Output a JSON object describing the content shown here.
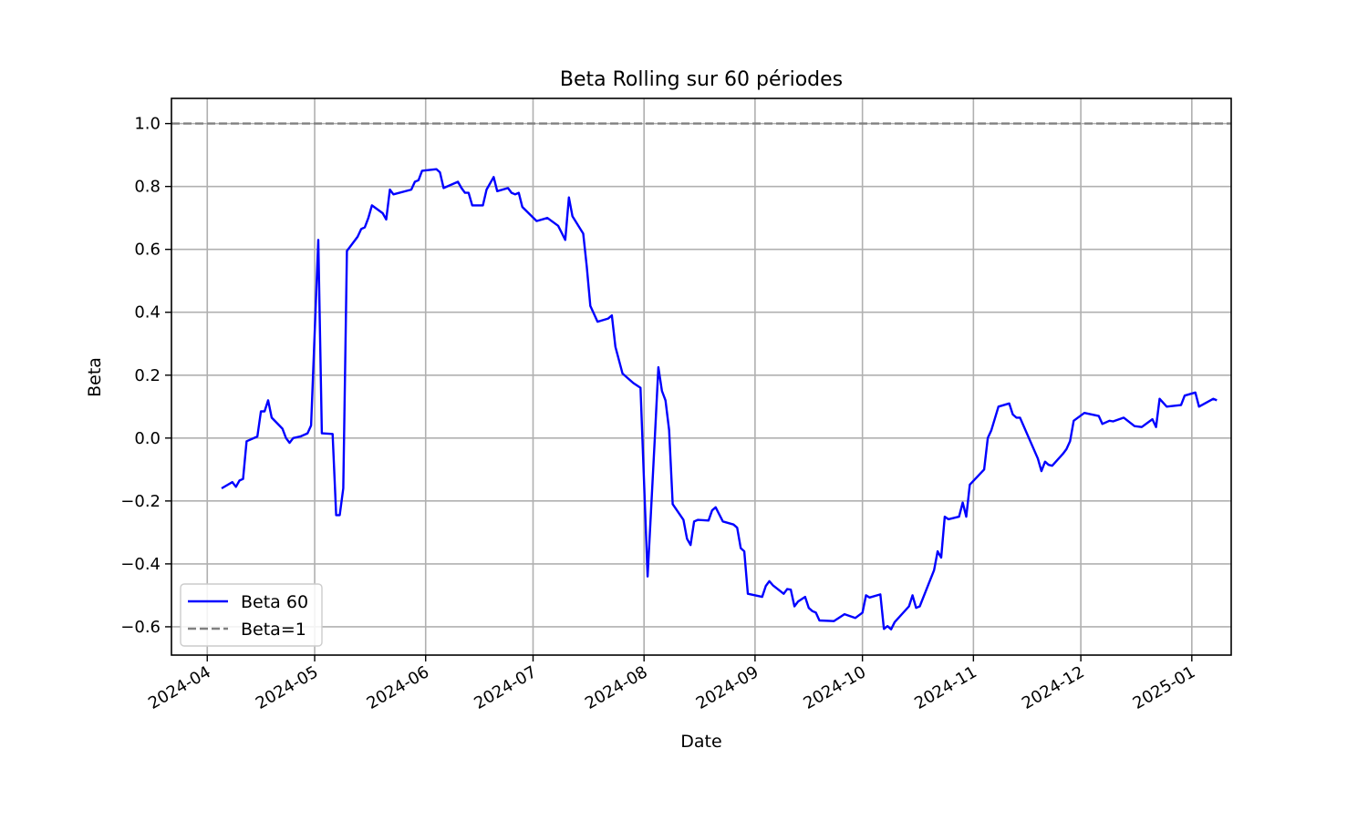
{
  "chart_data": {
    "type": "line",
    "title": "Beta Rolling sur 60 périodes",
    "xlabel": "Date",
    "ylabel": "Beta",
    "xlim": [
      "2024-03-22",
      "2025-01-12"
    ],
    "ylim": [
      -0.69,
      1.08
    ],
    "grid": true,
    "legend_position": "lower-left",
    "x_ticks": [
      "2024-04-01",
      "2024-05-01",
      "2024-06-01",
      "2024-07-01",
      "2024-08-01",
      "2024-09-01",
      "2024-10-01",
      "2024-11-01",
      "2024-12-01",
      "2025-01-01"
    ],
    "x_tick_labels": [
      "2024-04",
      "2024-05",
      "2024-06",
      "2024-07",
      "2024-08",
      "2024-09",
      "2024-10",
      "2024-11",
      "2024-12",
      "2025-01"
    ],
    "y_ticks": [
      -0.6,
      -0.4,
      -0.2,
      0.0,
      0.2,
      0.4,
      0.6,
      0.8,
      1.0
    ],
    "y_tick_labels": [
      "−0.6",
      "−0.4",
      "−0.2",
      "0.0",
      "0.2",
      "0.4",
      "0.6",
      "0.8",
      "1.0"
    ],
    "series": [
      {
        "name": "Beta 60",
        "color": "#0000ff",
        "style": "solid",
        "points": [
          [
            "2024-04-05",
            -0.16
          ],
          [
            "2024-04-08",
            -0.14
          ],
          [
            "2024-04-09",
            -0.155
          ],
          [
            "2024-04-10",
            -0.135
          ],
          [
            "2024-04-11",
            -0.13
          ],
          [
            "2024-04-12",
            -0.01
          ],
          [
            "2024-04-15",
            0.005
          ],
          [
            "2024-04-16",
            0.085
          ],
          [
            "2024-04-17",
            0.085
          ],
          [
            "2024-04-18",
            0.12
          ],
          [
            "2024-04-19",
            0.065
          ],
          [
            "2024-04-22",
            0.03
          ],
          [
            "2024-04-23",
            0.0
          ],
          [
            "2024-04-24",
            -0.015
          ],
          [
            "2024-04-25",
            0.0
          ],
          [
            "2024-04-27",
            0.005
          ],
          [
            "2024-04-29",
            0.015
          ],
          [
            "2024-04-30",
            0.04
          ],
          [
            "2024-05-02",
            0.63
          ],
          [
            "2024-05-03",
            0.015
          ],
          [
            "2024-05-06",
            0.013
          ],
          [
            "2024-05-07",
            -0.245
          ],
          [
            "2024-05-08",
            -0.245
          ],
          [
            "2024-05-09",
            -0.16
          ],
          [
            "2024-05-10",
            0.595
          ],
          [
            "2024-05-13",
            0.64
          ],
          [
            "2024-05-14",
            0.665
          ],
          [
            "2024-05-15",
            0.67
          ],
          [
            "2024-05-16",
            0.7
          ],
          [
            "2024-05-17",
            0.74
          ],
          [
            "2024-05-20",
            0.715
          ],
          [
            "2024-05-21",
            0.695
          ],
          [
            "2024-05-22",
            0.79
          ],
          [
            "2024-05-23",
            0.775
          ],
          [
            "2024-05-28",
            0.79
          ],
          [
            "2024-05-29",
            0.815
          ],
          [
            "2024-05-30",
            0.82
          ],
          [
            "2024-05-31",
            0.85
          ],
          [
            "2024-06-04",
            0.855
          ],
          [
            "2024-06-05",
            0.845
          ],
          [
            "2024-06-06",
            0.795
          ],
          [
            "2024-06-10",
            0.815
          ],
          [
            "2024-06-11",
            0.795
          ],
          [
            "2024-06-12",
            0.78
          ],
          [
            "2024-06-13",
            0.78
          ],
          [
            "2024-06-14",
            0.74
          ],
          [
            "2024-06-17",
            0.74
          ],
          [
            "2024-06-18",
            0.79
          ],
          [
            "2024-06-20",
            0.83
          ],
          [
            "2024-06-21",
            0.785
          ],
          [
            "2024-06-24",
            0.795
          ],
          [
            "2024-06-25",
            0.78
          ],
          [
            "2024-06-26",
            0.775
          ],
          [
            "2024-06-27",
            0.78
          ],
          [
            "2024-06-28",
            0.735
          ],
          [
            "2024-07-02",
            0.69
          ],
          [
            "2024-07-05",
            0.7
          ],
          [
            "2024-07-08",
            0.675
          ],
          [
            "2024-07-10",
            0.63
          ],
          [
            "2024-07-11",
            0.765
          ],
          [
            "2024-07-12",
            0.705
          ],
          [
            "2024-07-15",
            0.65
          ],
          [
            "2024-07-16",
            0.545
          ],
          [
            "2024-07-17",
            0.42
          ],
          [
            "2024-07-19",
            0.37
          ],
          [
            "2024-07-22",
            0.38
          ],
          [
            "2024-07-23",
            0.39
          ],
          [
            "2024-07-24",
            0.29
          ],
          [
            "2024-07-26",
            0.205
          ],
          [
            "2024-07-29",
            0.175
          ],
          [
            "2024-07-31",
            0.16
          ],
          [
            "2024-08-02",
            -0.44
          ],
          [
            "2024-08-04",
            0.0
          ],
          [
            "2024-08-05",
            0.225
          ],
          [
            "2024-08-06",
            0.15
          ],
          [
            "2024-08-07",
            0.12
          ],
          [
            "2024-08-08",
            0.025
          ],
          [
            "2024-08-09",
            -0.21
          ],
          [
            "2024-08-12",
            -0.26
          ],
          [
            "2024-08-13",
            -0.32
          ],
          [
            "2024-08-14",
            -0.34
          ],
          [
            "2024-08-15",
            -0.265
          ],
          [
            "2024-08-16",
            -0.26
          ],
          [
            "2024-08-19",
            -0.262
          ],
          [
            "2024-08-20",
            -0.23
          ],
          [
            "2024-08-21",
            -0.22
          ],
          [
            "2024-08-23",
            -0.265
          ],
          [
            "2024-08-26",
            -0.275
          ],
          [
            "2024-08-27",
            -0.285
          ],
          [
            "2024-08-28",
            -0.35
          ],
          [
            "2024-08-29",
            -0.36
          ],
          [
            "2024-08-30",
            -0.495
          ],
          [
            "2024-09-03",
            -0.505
          ],
          [
            "2024-09-04",
            -0.47
          ],
          [
            "2024-09-05",
            -0.455
          ],
          [
            "2024-09-06",
            -0.468
          ],
          [
            "2024-09-09",
            -0.495
          ],
          [
            "2024-09-10",
            -0.48
          ],
          [
            "2024-09-11",
            -0.482
          ],
          [
            "2024-09-12",
            -0.535
          ],
          [
            "2024-09-13",
            -0.52
          ],
          [
            "2024-09-15",
            -0.505
          ],
          [
            "2024-09-16",
            -0.54
          ],
          [
            "2024-09-17",
            -0.55
          ],
          [
            "2024-09-18",
            -0.555
          ],
          [
            "2024-09-19",
            -0.58
          ],
          [
            "2024-09-23",
            -0.582
          ],
          [
            "2024-09-26",
            -0.56
          ],
          [
            "2024-09-29",
            -0.572
          ],
          [
            "2024-10-01",
            -0.555
          ],
          [
            "2024-10-02",
            -0.5
          ],
          [
            "2024-10-03",
            -0.507
          ],
          [
            "2024-10-06",
            -0.497
          ],
          [
            "2024-10-07",
            -0.607
          ],
          [
            "2024-10-08",
            -0.598
          ],
          [
            "2024-10-09",
            -0.608
          ],
          [
            "2024-10-10",
            -0.585
          ],
          [
            "2024-10-14",
            -0.535
          ],
          [
            "2024-10-15",
            -0.5
          ],
          [
            "2024-10-16",
            -0.54
          ],
          [
            "2024-10-17",
            -0.535
          ],
          [
            "2024-10-21",
            -0.42
          ],
          [
            "2024-10-22",
            -0.36
          ],
          [
            "2024-10-23",
            -0.38
          ],
          [
            "2024-10-24",
            -0.25
          ],
          [
            "2024-10-25",
            -0.258
          ],
          [
            "2024-10-28",
            -0.25
          ],
          [
            "2024-10-29",
            -0.205
          ],
          [
            "2024-10-30",
            -0.25
          ],
          [
            "2024-10-31",
            -0.148
          ],
          [
            "2024-11-04",
            -0.1
          ],
          [
            "2024-11-05",
            0.0
          ],
          [
            "2024-11-06",
            0.025
          ],
          [
            "2024-11-08",
            0.1
          ],
          [
            "2024-11-11",
            0.11
          ],
          [
            "2024-11-12",
            0.075
          ],
          [
            "2024-11-13",
            0.065
          ],
          [
            "2024-11-14",
            0.065
          ],
          [
            "2024-11-19",
            -0.065
          ],
          [
            "2024-11-20",
            -0.105
          ],
          [
            "2024-11-21",
            -0.075
          ],
          [
            "2024-11-22",
            -0.085
          ],
          [
            "2024-11-23",
            -0.088
          ],
          [
            "2024-11-26",
            -0.05
          ],
          [
            "2024-11-27",
            -0.035
          ],
          [
            "2024-11-28",
            -0.01
          ],
          [
            "2024-11-29",
            0.055
          ],
          [
            "2024-12-02",
            0.08
          ],
          [
            "2024-12-06",
            0.07
          ],
          [
            "2024-12-07",
            0.045
          ],
          [
            "2024-12-09",
            0.055
          ],
          [
            "2024-12-10",
            0.053
          ],
          [
            "2024-12-13",
            0.065
          ],
          [
            "2024-12-16",
            0.038
          ],
          [
            "2024-12-18",
            0.035
          ],
          [
            "2024-12-21",
            0.06
          ],
          [
            "2024-12-22",
            0.035
          ],
          [
            "2024-12-23",
            0.125
          ],
          [
            "2024-12-25",
            0.1
          ],
          [
            "2024-12-29",
            0.105
          ],
          [
            "2024-12-30",
            0.135
          ],
          [
            "2025-01-02",
            0.145
          ],
          [
            "2025-01-03",
            0.1
          ],
          [
            "2025-01-07",
            0.125
          ],
          [
            "2025-01-08",
            0.12
          ]
        ]
      },
      {
        "name": "Beta=1",
        "color": "#808080",
        "style": "dashed",
        "points": [
          [
            "2024-03-22",
            1.0
          ],
          [
            "2025-01-12",
            1.0
          ]
        ]
      }
    ]
  }
}
